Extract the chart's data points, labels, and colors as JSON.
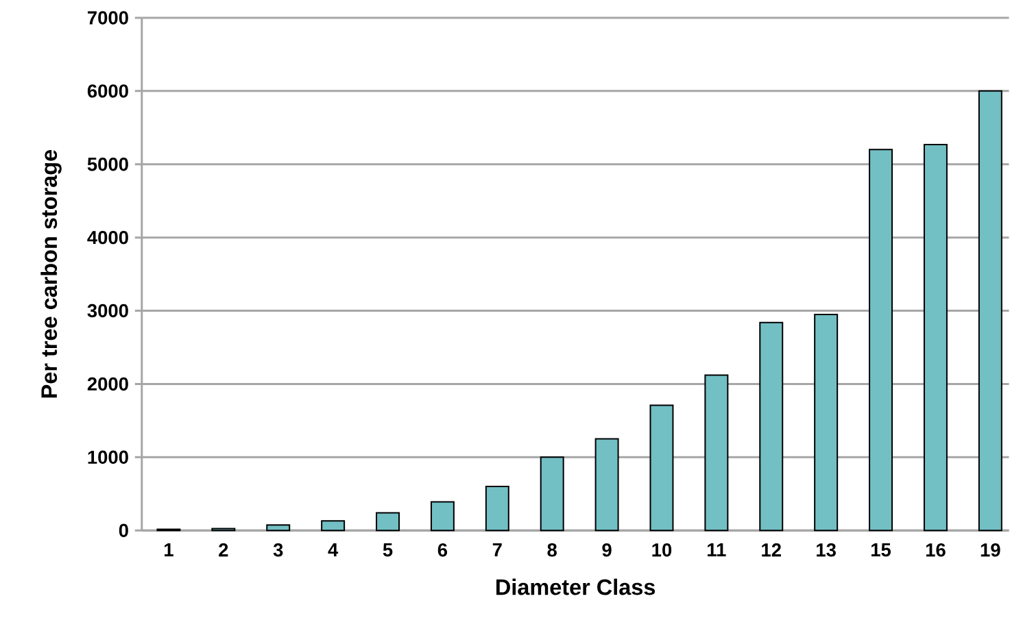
{
  "chart_data": {
    "type": "bar",
    "xlabel": "Diameter Class",
    "ylabel": "Per tree carbon storage",
    "categories": [
      "1",
      "2",
      "3",
      "4",
      "5",
      "6",
      "7",
      "8",
      "9",
      "10",
      "11",
      "12",
      "13",
      "15",
      "16",
      "19"
    ],
    "values": [
      15,
      25,
      75,
      130,
      240,
      390,
      600,
      1000,
      1250,
      1710,
      2120,
      2840,
      2950,
      5200,
      5270,
      6000
    ],
    "color": "#72bfc4",
    "ylim": [
      0,
      7000
    ],
    "yticks": [
      0,
      1000,
      2000,
      3000,
      4000,
      5000,
      6000,
      7000
    ],
    "grid": "y"
  }
}
